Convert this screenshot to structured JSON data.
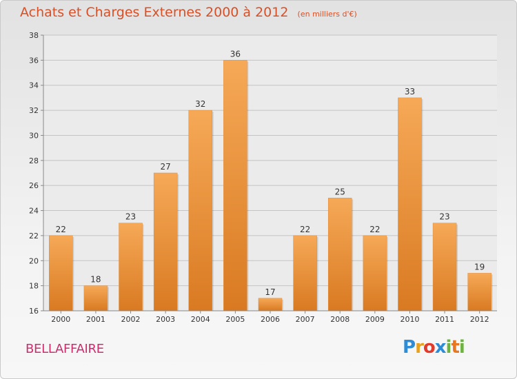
{
  "chart_data": {
    "type": "bar",
    "title": "Achats et Charges Externes 2000 à 2012",
    "subtitle": "(en milliers d'€)",
    "categories": [
      "2000",
      "2001",
      "2002",
      "2003",
      "2004",
      "2005",
      "2006",
      "2007",
      "2008",
      "2009",
      "2010",
      "2011",
      "2012"
    ],
    "values": [
      22,
      18,
      23,
      27,
      32,
      36,
      17,
      22,
      25,
      22,
      33,
      23,
      19
    ],
    "ylim": [
      16,
      38
    ],
    "yticks": [
      16,
      18,
      20,
      22,
      24,
      26,
      28,
      30,
      32,
      34,
      36,
      38
    ],
    "grid": "horizontal",
    "legend": "none",
    "colors": {
      "bar_top": "#f6a957",
      "bar_bottom": "#d97a22",
      "text": "#333333"
    }
  },
  "footer": {
    "commune": "BELLAFFAIRE",
    "logo_text": "Proxiti"
  }
}
